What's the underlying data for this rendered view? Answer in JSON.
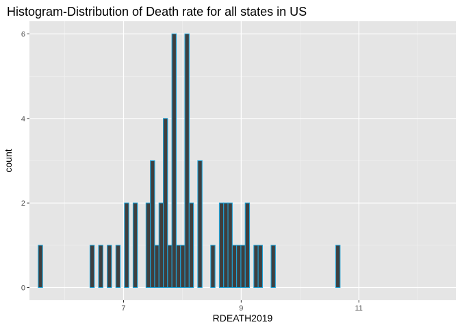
{
  "chart_data": {
    "type": "bar",
    "subtype": "histogram",
    "title": "Histogram-Distribution of Death rate for all states in US",
    "xlabel": "RDEATH2019",
    "ylabel": "count",
    "xlim": [
      5.4,
      12.65
    ],
    "ylim": [
      -0.3,
      6.3
    ],
    "x_major_ticks": [
      7,
      9,
      11
    ],
    "x_major_tick_labels": [
      "7",
      "9",
      "11"
    ],
    "x_minor_gridlines": [
      6,
      8,
      10,
      12
    ],
    "y_major_ticks": [
      0,
      2,
      4,
      6
    ],
    "y_major_tick_labels": [
      "0",
      "2",
      "4",
      "6"
    ],
    "y_minor_gridlines": [
      1,
      3,
      5
    ],
    "grid": true,
    "background_color": "#e5e5e5",
    "bar_fill_color": "#3f3f3f",
    "bar_outline_color": "#1fa3d8",
    "bins": {
      "start": 5.55,
      "width": 0.0733,
      "values": [
        1,
        0,
        0,
        0,
        0,
        0,
        0,
        0,
        0,
        0,
        0,
        0,
        1,
        0,
        1,
        0,
        1,
        0,
        1,
        0,
        2,
        0,
        2,
        0,
        0,
        2,
        3,
        1,
        2,
        4,
        1,
        6,
        1,
        1,
        6,
        2,
        0,
        3,
        0,
        0,
        1,
        0,
        2,
        2,
        2,
        1,
        1,
        1,
        2,
        0,
        1,
        1,
        0,
        0,
        1,
        0,
        0,
        0,
        0,
        0,
        0,
        0,
        0,
        0,
        0,
        0,
        0,
        0,
        0,
        1
      ]
    }
  }
}
